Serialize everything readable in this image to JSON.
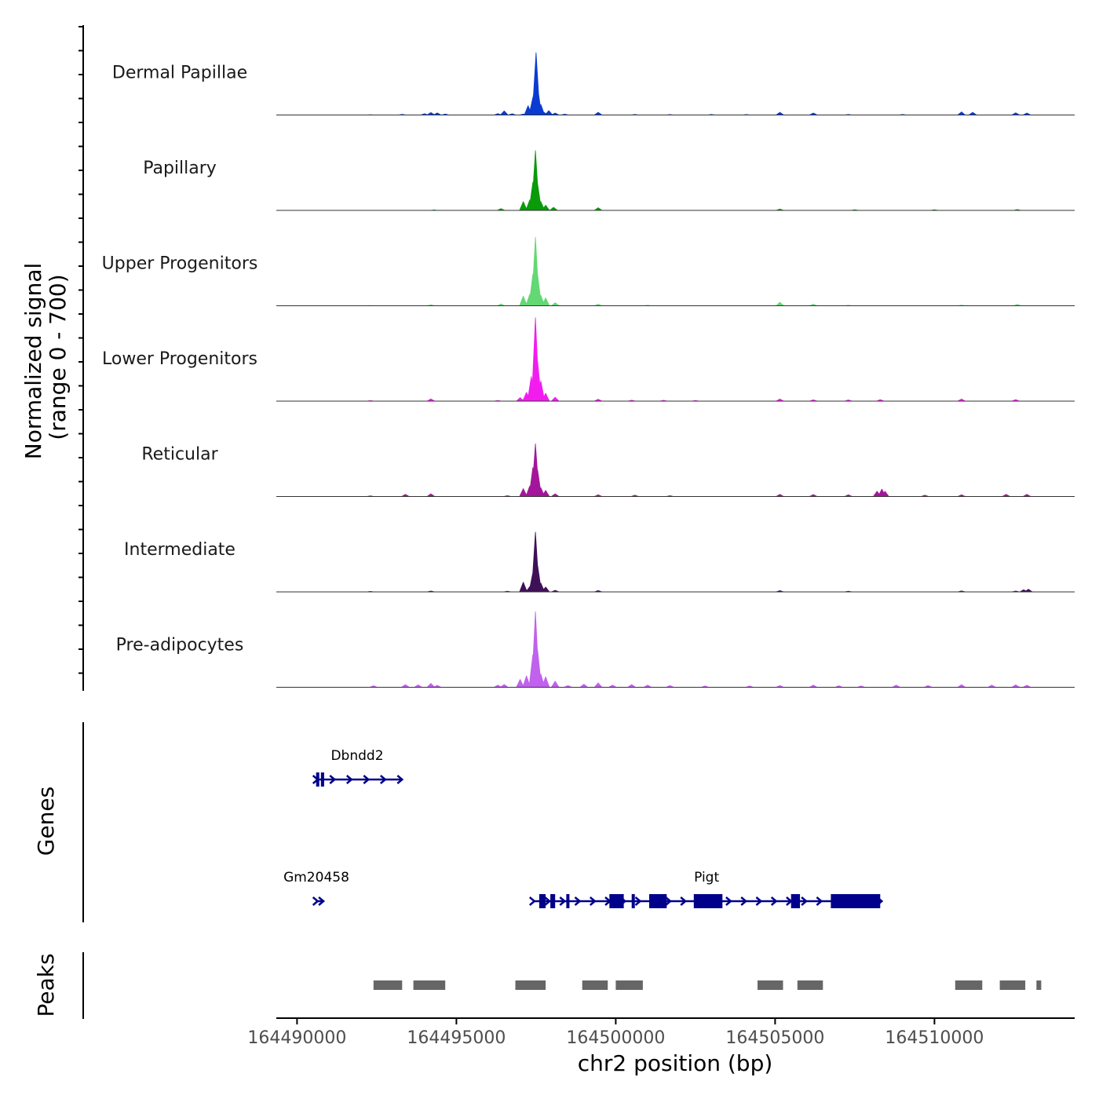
{
  "chart_data": {
    "type": "area",
    "title": "",
    "xlabel": "chr2 position (bp)",
    "ylabel": "Normalized signal",
    "ylabel_range": "(range 0 - 700)",
    "ylim": [
      0,
      700
    ],
    "xlim": [
      164489350,
      164514400
    ],
    "x_ticks": [
      164490000,
      164495000,
      164500000,
      164505000,
      164510000
    ],
    "x_tick_labels": [
      "164490000",
      "164495000",
      "164500000",
      "164505000",
      "164510000"
    ],
    "series": [
      {
        "name": "Dermal Papillae",
        "color": "#0b3bd1",
        "points": [
          [
            164492300,
            4
          ],
          [
            164493300,
            7
          ],
          [
            164494000,
            14
          ],
          [
            164494200,
            28
          ],
          [
            164494400,
            24
          ],
          [
            164494650,
            12
          ],
          [
            164496300,
            16
          ],
          [
            164496500,
            46
          ],
          [
            164496750,
            14
          ],
          [
            164497100,
            12
          ],
          [
            164497250,
            105
          ],
          [
            164497400,
            200
          ],
          [
            164497450,
            320
          ],
          [
            164497500,
            710
          ],
          [
            164497550,
            320
          ],
          [
            164497650,
            120
          ],
          [
            164497750,
            30
          ],
          [
            164497900,
            50
          ],
          [
            164498100,
            22
          ],
          [
            164498400,
            10
          ],
          [
            164499450,
            30
          ],
          [
            164500600,
            6
          ],
          [
            164501700,
            5
          ],
          [
            164503000,
            6
          ],
          [
            164504100,
            5
          ],
          [
            164505150,
            30
          ],
          [
            164506200,
            22
          ],
          [
            164507300,
            6
          ],
          [
            164509000,
            6
          ],
          [
            164510850,
            35
          ],
          [
            164511200,
            30
          ],
          [
            164512550,
            25
          ],
          [
            164512900,
            22
          ]
        ]
      },
      {
        "name": "Papillary",
        "color": "#0a9a0a",
        "points": [
          [
            164494300,
            5
          ],
          [
            164496400,
            20
          ],
          [
            164497100,
            100
          ],
          [
            164497300,
            120
          ],
          [
            164497400,
            320
          ],
          [
            164497480,
            680
          ],
          [
            164497550,
            300
          ],
          [
            164497650,
            100
          ],
          [
            164497800,
            60
          ],
          [
            164498050,
            35
          ],
          [
            164499450,
            30
          ],
          [
            164505150,
            15
          ],
          [
            164507500,
            8
          ],
          [
            164510000,
            8
          ],
          [
            164512600,
            10
          ]
        ]
      },
      {
        "name": "Upper Progenitors",
        "color": "#63d874",
        "points": [
          [
            164492300,
            4
          ],
          [
            164494200,
            12
          ],
          [
            164496400,
            20
          ],
          [
            164497100,
            110
          ],
          [
            164497300,
            130
          ],
          [
            164497400,
            360
          ],
          [
            164497480,
            780
          ],
          [
            164497550,
            350
          ],
          [
            164497650,
            120
          ],
          [
            164497800,
            90
          ],
          [
            164498100,
            35
          ],
          [
            164499450,
            18
          ],
          [
            164501000,
            6
          ],
          [
            164505150,
            40
          ],
          [
            164506200,
            18
          ],
          [
            164507300,
            6
          ],
          [
            164510850,
            8
          ],
          [
            164512600,
            15
          ]
        ]
      },
      {
        "name": "Lower Progenitors",
        "color": "#f21cef",
        "points": [
          [
            164492300,
            6
          ],
          [
            164494200,
            26
          ],
          [
            164496300,
            8
          ],
          [
            164497000,
            40
          ],
          [
            164497200,
            100
          ],
          [
            164497350,
            280
          ],
          [
            164497480,
            950
          ],
          [
            164497550,
            450
          ],
          [
            164497650,
            230
          ],
          [
            164497800,
            90
          ],
          [
            164498100,
            45
          ],
          [
            164499450,
            22
          ],
          [
            164500500,
            12
          ],
          [
            164501500,
            10
          ],
          [
            164502500,
            8
          ],
          [
            164505150,
            25
          ],
          [
            164506200,
            15
          ],
          [
            164507300,
            14
          ],
          [
            164508300,
            18
          ],
          [
            164510850,
            25
          ],
          [
            164512550,
            18
          ]
        ]
      },
      {
        "name": "Reticular",
        "color": "#a3169b",
        "points": [
          [
            164492300,
            8
          ],
          [
            164493400,
            25
          ],
          [
            164494200,
            30
          ],
          [
            164496600,
            10
          ],
          [
            164497100,
            90
          ],
          [
            164497300,
            120
          ],
          [
            164497400,
            330
          ],
          [
            164497480,
            600
          ],
          [
            164497550,
            300
          ],
          [
            164497650,
            100
          ],
          [
            164497800,
            70
          ],
          [
            164498100,
            30
          ],
          [
            164499450,
            20
          ],
          [
            164500600,
            15
          ],
          [
            164501700,
            10
          ],
          [
            164505150,
            25
          ],
          [
            164506200,
            22
          ],
          [
            164507300,
            20
          ],
          [
            164508200,
            60
          ],
          [
            164508350,
            85
          ],
          [
            164508450,
            60
          ],
          [
            164509700,
            15
          ],
          [
            164510850,
            20
          ],
          [
            164512250,
            25
          ],
          [
            164512900,
            25
          ]
        ]
      },
      {
        "name": "Intermediate",
        "color": "#3e1157",
        "points": [
          [
            164492300,
            5
          ],
          [
            164494200,
            10
          ],
          [
            164496600,
            8
          ],
          [
            164497100,
            110
          ],
          [
            164497300,
            60
          ],
          [
            164497400,
            220
          ],
          [
            164497480,
            680
          ],
          [
            164497550,
            300
          ],
          [
            164497650,
            100
          ],
          [
            164497800,
            55
          ],
          [
            164498100,
            18
          ],
          [
            164499450,
            15
          ],
          [
            164505150,
            14
          ],
          [
            164507300,
            8
          ],
          [
            164510850,
            12
          ],
          [
            164512550,
            10
          ],
          [
            164512800,
            25
          ],
          [
            164512950,
            30
          ]
        ]
      },
      {
        "name": "Pre-adipocytes",
        "color": "#c062ed",
        "points": [
          [
            164492400,
            18
          ],
          [
            164493400,
            30
          ],
          [
            164493800,
            28
          ],
          [
            164494200,
            45
          ],
          [
            164494400,
            22
          ],
          [
            164496300,
            25
          ],
          [
            164496500,
            32
          ],
          [
            164497000,
            90
          ],
          [
            164497200,
            130
          ],
          [
            164497400,
            370
          ],
          [
            164497480,
            860
          ],
          [
            164497550,
            420
          ],
          [
            164497650,
            150
          ],
          [
            164497800,
            120
          ],
          [
            164498100,
            70
          ],
          [
            164498500,
            20
          ],
          [
            164499000,
            35
          ],
          [
            164499450,
            50
          ],
          [
            164499900,
            25
          ],
          [
            164500500,
            32
          ],
          [
            164501000,
            25
          ],
          [
            164501700,
            20
          ],
          [
            164502800,
            15
          ],
          [
            164504200,
            15
          ],
          [
            164505150,
            20
          ],
          [
            164506200,
            25
          ],
          [
            164507000,
            18
          ],
          [
            164507700,
            15
          ],
          [
            164508800,
            25
          ],
          [
            164509800,
            20
          ],
          [
            164510850,
            30
          ],
          [
            164511800,
            25
          ],
          [
            164512550,
            28
          ],
          [
            164512900,
            24
          ]
        ]
      }
    ],
    "genes": [
      {
        "name": "Dbndd2",
        "start": 164490600,
        "end": 164493250,
        "strand": "+",
        "row": 1,
        "exons": [
          [
            164490600,
            164490650
          ],
          [
            164490750,
            164490850
          ]
        ]
      },
      {
        "name": "Gm20458",
        "start": 164490600,
        "end": 164490780,
        "strand": "+",
        "row": 2,
        "exons": []
      },
      {
        "name": "Pigt",
        "start": 164497400,
        "end": 164508300,
        "strand": "+",
        "row": 2,
        "exons": [
          [
            164497600,
            164497800
          ],
          [
            164497950,
            164498100
          ],
          [
            164498450,
            164498500
          ],
          [
            164499800,
            164500250
          ],
          [
            164500500,
            164500550
          ],
          [
            164501050,
            164501600
          ],
          [
            164502450,
            164503350
          ],
          [
            164505500,
            164505780
          ],
          [
            164506750,
            164508300
          ]
        ]
      }
    ],
    "peaks": [
      [
        164492400,
        164493300
      ],
      [
        164493650,
        164494650
      ],
      [
        164496850,
        164497800
      ],
      [
        164498950,
        164499750
      ],
      [
        164500000,
        164500850
      ],
      [
        164504450,
        164505250
      ],
      [
        164505700,
        164506500
      ],
      [
        164510650,
        164511500
      ],
      [
        164512050,
        164512850
      ],
      [
        164513200,
        164513350
      ]
    ],
    "panels": {
      "genes_title": "Genes",
      "peaks_title": "Peaks"
    },
    "colors": {
      "gene": "#00008b",
      "peak": "#666666",
      "baseline": "#333333"
    }
  }
}
